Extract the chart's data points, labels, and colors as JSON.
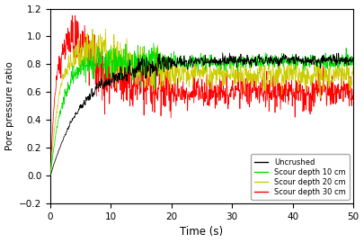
{
  "title": "",
  "xlabel": "Time (s)",
  "ylabel": "Pore pressure ratio",
  "xlim": [
    0,
    50
  ],
  "ylim": [
    -0.2,
    1.2
  ],
  "yticks": [
    -0.2,
    0.0,
    0.2,
    0.4,
    0.6,
    0.8,
    1.0,
    1.2
  ],
  "xticks": [
    0,
    10,
    20,
    30,
    40,
    50
  ],
  "colors": {
    "uncrushed": "#000000",
    "scour10": "#00dd00",
    "scour20": "#cccc00",
    "scour30": "#ff0000"
  },
  "legend_labels": [
    "Uncrushed",
    "Scour depth 10 cm",
    "Scour depth 20 cm",
    "Scour depth 30 cm"
  ],
  "duration": 50,
  "dt": 0.05,
  "seed": 77
}
